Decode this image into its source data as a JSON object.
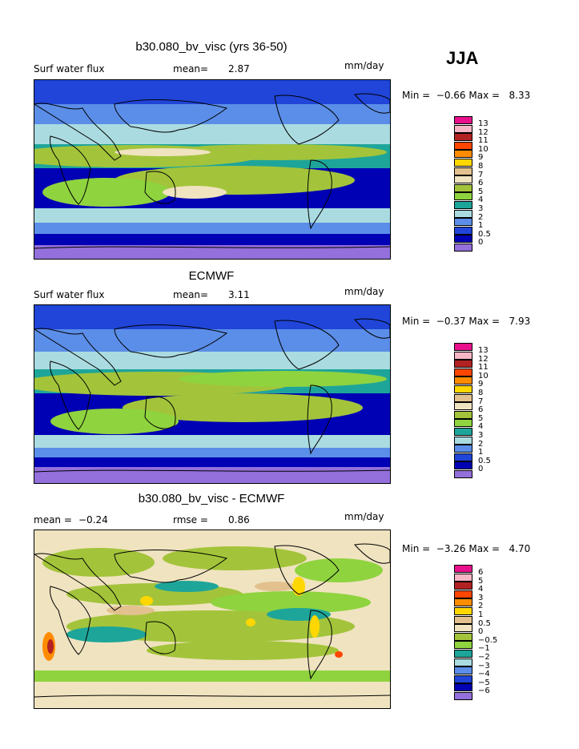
{
  "season": "JJA",
  "panels": [
    {
      "title": "b30.080_bv_visc (yrs 36-50)",
      "left_label": "Surf water flux",
      "stat1_label": "mean=",
      "stat1_value": "2.87",
      "stat2_label": "",
      "stat2_value": "",
      "units": "mm/day",
      "min_max": "Min =  −0.66 Max =   8.33",
      "legend": [
        "13",
        "12",
        "11",
        "10",
        "9",
        "8",
        "7",
        "6",
        "5",
        "4",
        "3",
        "2",
        "1",
        "0.5",
        "0"
      ],
      "colors": [
        "#e8108c",
        "#f7b6c6",
        "#b22222",
        "#ff4500",
        "#ff8c00",
        "#ffd700",
        "#e2c18f",
        "#f0e3c0",
        "#a3c43a",
        "#8fd33f",
        "#1ea59a",
        "#aadbe0",
        "#5b8ee8",
        "#2045d8",
        "#0000b4",
        "#9370db"
      ]
    },
    {
      "title": "ECMWF",
      "left_label": "Surf water flux",
      "stat1_label": "mean=",
      "stat1_value": "3.11",
      "stat2_label": "",
      "stat2_value": "",
      "units": "mm/day",
      "min_max": "Min =  −0.37 Max =   7.93",
      "legend": [
        "13",
        "12",
        "11",
        "10",
        "9",
        "8",
        "7",
        "6",
        "5",
        "4",
        "3",
        "2",
        "1",
        "0.5",
        "0"
      ],
      "colors": [
        "#e8108c",
        "#f7b6c6",
        "#b22222",
        "#ff4500",
        "#ff8c00",
        "#ffd700",
        "#e2c18f",
        "#f0e3c0",
        "#a3c43a",
        "#8fd33f",
        "#1ea59a",
        "#aadbe0",
        "#5b8ee8",
        "#2045d8",
        "#0000b4",
        "#9370db"
      ]
    },
    {
      "title": "b30.080_bv_visc - ECMWF",
      "left_label": "",
      "stat1_label": "mean =",
      "stat1_value": "−0.24",
      "stat2_label": "rmse =",
      "stat2_value": "0.86",
      "units": "mm/day",
      "min_max": "Min =  −3.26 Max =   4.70",
      "legend": [
        "6",
        "5",
        "4",
        "3",
        "2",
        "1",
        "0.5",
        "0",
        "−0.5",
        "−1",
        "−2",
        "−3",
        "−4",
        "−5",
        "−6"
      ],
      "colors": [
        "#e8108c",
        "#f7b6c6",
        "#b22222",
        "#ff4500",
        "#ff8c00",
        "#ffd700",
        "#e2c18f",
        "#f0e3c0",
        "#a3c43a",
        "#8fd33f",
        "#1ea59a",
        "#aadbe0",
        "#5b8ee8",
        "#2045d8",
        "#0000b4",
        "#9370db"
      ]
    }
  ]
}
